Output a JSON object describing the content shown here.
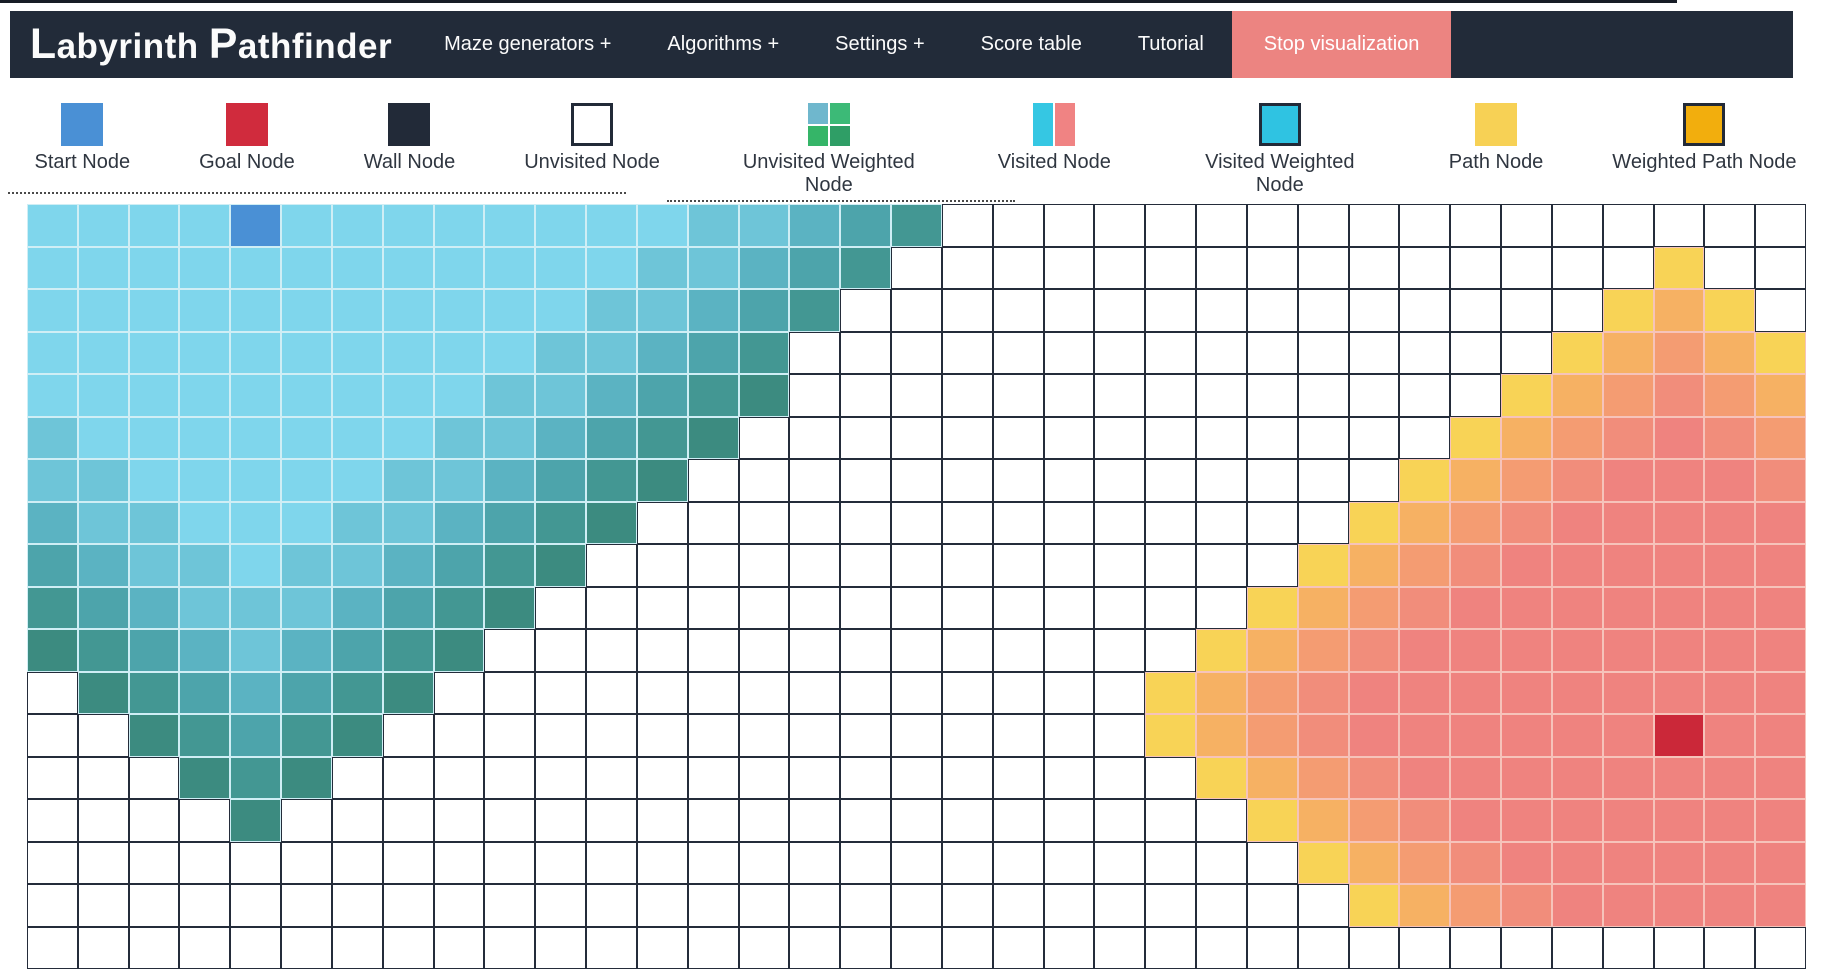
{
  "navbar": {
    "brand": "Labyrinth Pathfinder",
    "bg": "#222b39",
    "items": [
      {
        "name": "maze-generators",
        "label": "Maze generators +"
      },
      {
        "name": "algorithms",
        "label": "Algorithms +"
      },
      {
        "name": "settings",
        "label": "Settings +"
      },
      {
        "name": "score-table",
        "label": "Score table"
      },
      {
        "name": "tutorial",
        "label": "Tutorial"
      }
    ],
    "stop_button": {
      "label": "Stop visualization",
      "bg": "#ec8481"
    }
  },
  "legend": {
    "items": [
      {
        "name": "start-node",
        "label": "Start Node",
        "swatch": {
          "type": "solid",
          "fill": "#4a90d5"
        }
      },
      {
        "name": "goal-node",
        "label": "Goal Node",
        "swatch": {
          "type": "solid",
          "fill": "#d02b3d"
        }
      },
      {
        "name": "wall-node",
        "label": "Wall Node",
        "swatch": {
          "type": "solid",
          "fill": "#222a38"
        }
      },
      {
        "name": "unvisited-node",
        "label": "Unvisited Node",
        "swatch": {
          "type": "solid",
          "fill": "#ffffff",
          "border": "#222a38"
        }
      },
      {
        "name": "unvisited-weighted-node",
        "label": "Unvisited Weighted Node",
        "swatch": {
          "type": "quad",
          "fills": [
            "#6fb7cd",
            "#3cba77",
            "#35b568",
            "#2f9e66"
          ]
        }
      },
      {
        "name": "visited-node",
        "label": "Visited Node",
        "swatch": {
          "type": "split",
          "fills": [
            "#35c7e3",
            "#f08383"
          ]
        }
      },
      {
        "name": "visited-weighted-node",
        "label": "Visited Weighted Node",
        "swatch": {
          "type": "solid",
          "fill": "#2fc3e2",
          "border": "#222a38"
        }
      },
      {
        "name": "path-node",
        "label": "Path Node",
        "swatch": {
          "type": "solid",
          "fill": "#f7d155"
        }
      },
      {
        "name": "weighted-path-node",
        "label": "Weighted Path Node",
        "swatch": {
          "type": "solid",
          "fill": "#f2ae0d",
          "border": "#222a38"
        }
      }
    ]
  },
  "grid": {
    "cols": 35,
    "rows": [
      "aaaaSaaaaaaaabbcde.................",
      "aaaaaaaaaaaabbcde...............y..",
      "aaaaaaaaaaabbcde...............yoy.",
      "aaaaaaaaaabbcde...............yopoy",
      "aaaaaaaaabbcdef..............yopqpo",
      "baaaaaaabbcdef..............yopqrqp",
      "bbaaaaabbcdef..............yopqrrrq",
      "cbbaaabbcdef..............yopqrrrrr",
      "dcbbabbcdef..............yopqrrrrrr",
      "edcbbbcdef..............yopqrrrrrrr",
      "fedcbcdef..............yopqrrrrrrrr",
      ".fedcdef..............yopqrrrrrrrrr",
      "..fedef...............yopqrrrrrrGrr",
      "...fef.................yopqrrrrrrrr",
      "....f...................yopqrrrrrrr",
      ".........................yopqrrrrrr",
      "..........................yopqrrrrr",
      "..................................."
    ],
    "palette": {
      ".": {
        "fill": "#ffffff",
        "border": "#242c3a",
        "name": "unvisited-cell"
      },
      "S": {
        "fill": "#4a90d5",
        "border": "#cfeef5",
        "name": "start-node-cell"
      },
      "a": {
        "fill": "#7fd6ec",
        "border": "#cfeef5",
        "name": "visited-cell"
      },
      "b": {
        "fill": "#6ec5d8",
        "border": "#cfeef5",
        "name": "visited-cell"
      },
      "c": {
        "fill": "#5bb3c2",
        "border": "#cfeef5",
        "name": "visited-cell"
      },
      "d": {
        "fill": "#4da4ab",
        "border": "#cfeef5",
        "name": "visited-cell"
      },
      "e": {
        "fill": "#439793",
        "border": "#cfeef5",
        "name": "visited-cell"
      },
      "f": {
        "fill": "#3c8b80",
        "border": "#cfeef5",
        "name": "visited-frontier-cell"
      },
      "y": {
        "fill": "#f8d356",
        "border": "#f6c3ba",
        "name": "frontier-cell"
      },
      "o": {
        "fill": "#f6b163",
        "border": "#f6c3ba",
        "name": "visited-cell"
      },
      "p": {
        "fill": "#f49c72",
        "border": "#f6c3ba",
        "name": "visited-cell"
      },
      "q": {
        "fill": "#f18d7b",
        "border": "#f6c3ba",
        "name": "visited-cell"
      },
      "r": {
        "fill": "#ef837f",
        "border": "#f6c3ba",
        "name": "visited-cell"
      },
      "G": {
        "fill": "#cb2839",
        "border": "#f6c3ba",
        "name": "goal-node-cell"
      }
    }
  }
}
